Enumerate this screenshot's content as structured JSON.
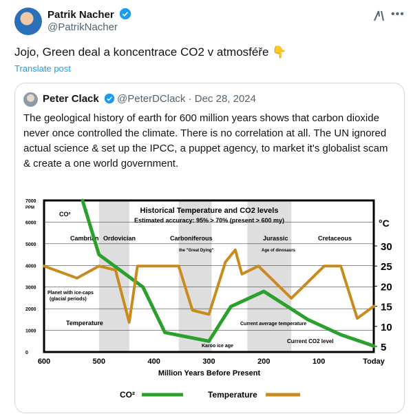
{
  "tweet": {
    "author_name": "Patrik Nacher",
    "author_handle": "@PatrikNacher",
    "text": "Jojo, Green deal a koncentrace CO2 v atmosféře 👇",
    "translate_label": "Translate post"
  },
  "icons": {
    "more": "more-icon",
    "grok": "grok-icon",
    "verified": "verified-badge-icon"
  },
  "colors": {
    "accent": "#1d9bf0",
    "co2_line": "#2ca02c",
    "temp_line": "#c98a1e"
  },
  "quote": {
    "author_name": "Peter Clack",
    "author_handle": "@PeterDClack",
    "date": "· Dec 28, 2024",
    "text": "The geological history of earth for 600 million years shows that carbon dioxide never once controlled the climate. There is no correlation at all. The UN ignored actual science & set up the IPCC, a puppet agency, to market it's globalist scam & create a one world government."
  },
  "chart_data": {
    "type": "line",
    "title": "Historical Temperature and CO2 levels",
    "subtitle": "Estimated accuracy: 95% > 70% (present > 600 my)",
    "xlabel": "Million Years Before Present",
    "x_ticks": [
      "600",
      "500",
      "400",
      "300",
      "200",
      "100",
      "Today"
    ],
    "y_left_ticks": [
      "7000 PPM",
      "6000",
      "5000",
      "4000",
      "3000",
      "2000",
      "1000",
      "0"
    ],
    "y_right_unit": "°C",
    "y_right_ticks": [
      "30",
      "25",
      "20",
      "15",
      "10",
      "5"
    ],
    "periods": [
      "Cambrian",
      "Ordovician",
      "Carboniferous",
      "Jurassic",
      "Cretaceous"
    ],
    "annotations": {
      "co2_label": "CO²",
      "great_dying": "the \"Great Dying\"",
      "age_dinosaurs": "Age of dinosaurs",
      "ice_caps": "Planet with ice-caps (glacial periods)",
      "temperature_label": "Temperature",
      "current_temp": "Current average temperature",
      "karoo": "Karoo ice age",
      "current_co2": "Current CO2 level"
    },
    "legend": [
      "CO²",
      "Temperature"
    ],
    "series": [
      {
        "name": "CO²",
        "x": [
          530,
          500,
          420,
          380,
          300,
          260,
          200,
          120,
          60,
          0
        ],
        "y": [
          7000,
          4500,
          3000,
          900,
          500,
          2100,
          2800,
          1500,
          800,
          280
        ]
      },
      {
        "name": "Temperature",
        "x": [
          600,
          540,
          500,
          470,
          445,
          430,
          400,
          355,
          330,
          300,
          270,
          252,
          240,
          210,
          180,
          150,
          120,
          90,
          60,
          30,
          0
        ],
        "y": [
          25,
          22,
          25,
          24,
          11,
          25,
          25,
          25,
          14,
          13,
          26,
          29,
          23,
          25,
          21,
          17,
          21,
          25,
          25,
          12,
          15
        ]
      }
    ]
  }
}
